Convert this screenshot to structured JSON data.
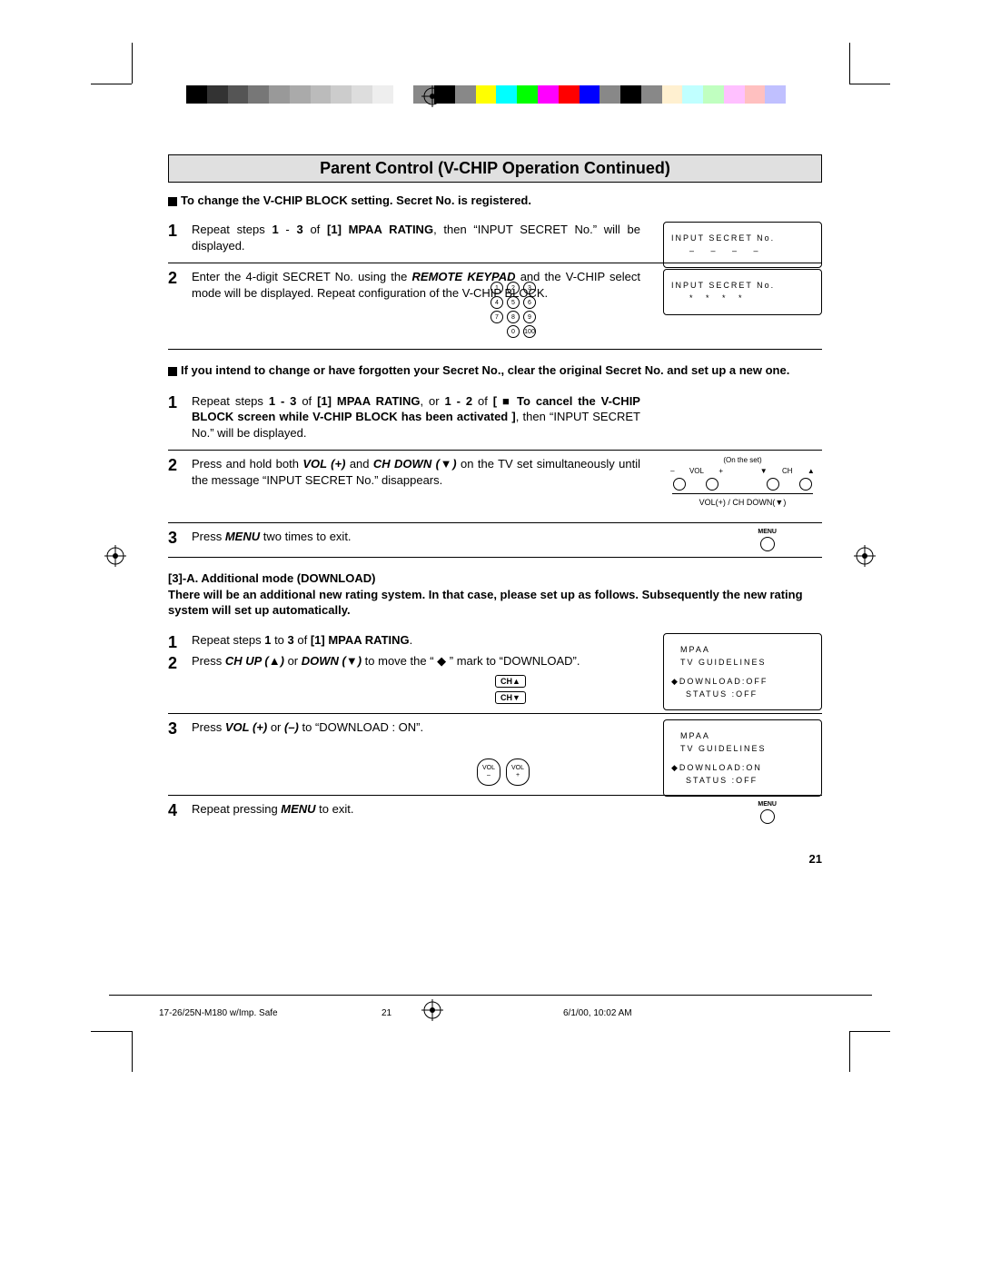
{
  "colorbar": [
    "#000000",
    "#333333",
    "#555555",
    "#777777",
    "#999999",
    "#aaaaaa",
    "#bbbbbb",
    "#cccccc",
    "#dddddd",
    "#eeeeee",
    "#ffffff",
    "#888888",
    "#000000",
    "#888888",
    "#ffff00",
    "#00ffff",
    "#00ff00",
    "#ff00ff",
    "#ff0000",
    "#0000ff",
    "#888888",
    "#000000",
    "#888888",
    "#fff0d0",
    "#c0ffff",
    "#c0ffc0",
    "#ffc0ff",
    "#ffc0c0",
    "#c0c0ff"
  ],
  "title": "Parent Control (V-CHIP Operation Continued)",
  "sub1": "To change the V-CHIP BLOCK setting. Secret No. is registered.",
  "step1": {
    "num": "1",
    "text_a": "Repeat steps ",
    "b1": "1",
    "dash": " - ",
    "b2": "3",
    "of": " of ",
    "b3": "[1] MPAA RATING",
    "text_b": ", then “INPUT SECRET No.” will be displayed."
  },
  "osd1": {
    "l1": "INPUT SECRET No.",
    "dashes": "– – – –"
  },
  "step2": {
    "num": "2",
    "text_a": "Enter the 4-digit SECRET No. using the ",
    "b1": "REMOTE KEYPAD",
    "text_b": " and the V-CHIP select mode will be displayed. Repeat configuration of the V-CHIP BLOCK."
  },
  "osd2": {
    "l1": "INPUT SECRET No.",
    "stars": "* * * *"
  },
  "keypad": [
    "1",
    "2",
    "3",
    "4",
    "5",
    "6",
    "7",
    "8",
    "9",
    "",
    "0",
    "100"
  ],
  "note1a": "If you intend to change or have forgotten your Secret No., clear the original Secret No. and set up a new one.",
  "stepA1": {
    "num": "1",
    "text_a": "Repeat steps ",
    "b1": "1 - 3",
    "of": " of ",
    "b2": "[1] MPAA RATING",
    "or": ", or ",
    "b3": "1 - 2",
    "of2": " of ",
    "b4": "[ ■ To cancel the V-CHIP BLOCK screen while V-CHIP BLOCK has been activated ]",
    "tail": ", then “INPUT SECRET No.” will be displayed."
  },
  "stepA2": {
    "num": "2",
    "text_a": "Press and hold both ",
    "b1": "VOL (+)",
    "and": " and ",
    "b2": "CH DOWN (▼)",
    "text_b": " on the TV set simultaneously until the message “INPUT SECRET No.” disappears."
  },
  "tvset": {
    "caption": "(On the set)",
    "sub": "VOL(+) / CH DOWN(▼)",
    "labels": [
      "–",
      "VOL",
      "+",
      "▼",
      "CH",
      "▲"
    ]
  },
  "stepA3": {
    "num": "3",
    "text_a": "Press ",
    "b1": "MENU",
    "text_b": " two times to exit."
  },
  "menu_label": "MENU",
  "section3A_title": "[3]-A. Additional mode (DOWNLOAD)",
  "section3A_body": "There will be an additional new rating system. In that case, please set up as follows. Subsequently the new rating system will set up automatically.",
  "stepB1": {
    "num": "1",
    "text_a": "Repeat steps ",
    "b1": "1",
    "to": " to ",
    "b2": "3",
    "of": " of ",
    "b3": "[1] MPAA RATING",
    "tail": "."
  },
  "stepB2": {
    "num": "2",
    "text_a": "Press ",
    "b1": "CH UP (▲)",
    "or": " or ",
    "b2": "DOWN (▼)",
    "text_b": " to move the “ ◆ ” mark to “DOWNLOAD”."
  },
  "ch_up": "CH▲",
  "ch_down": "CH▼",
  "osd3": {
    "l1": "MPAA",
    "l2": "TV GUIDELINES",
    "l3": "◆DOWNLOAD:OFF",
    "l4": "STATUS   :OFF"
  },
  "stepB3": {
    "num": "3",
    "text_a": "Press ",
    "b1": "VOL (+)",
    "or": " or ",
    "b2": "(–)",
    "text_b": " to “DOWNLOAD : ON”."
  },
  "osd4": {
    "l1": "MPAA",
    "l2": "TV GUIDELINES",
    "l3": "◆DOWNLOAD:ON",
    "l4": "STATUS   :OFF"
  },
  "vol_minus": {
    "a": "VOL",
    "b": "–"
  },
  "vol_plus": {
    "a": "VOL",
    "b": "+"
  },
  "stepB4": {
    "num": "4",
    "text_a": "Repeat pressing ",
    "b1": "MENU",
    "text_b": " to exit."
  },
  "page_number": "21",
  "footer_left": "17-26/25N-M180 w/Imp. Safe",
  "footer_center": "21",
  "footer_right": "6/1/00, 10:02 AM"
}
